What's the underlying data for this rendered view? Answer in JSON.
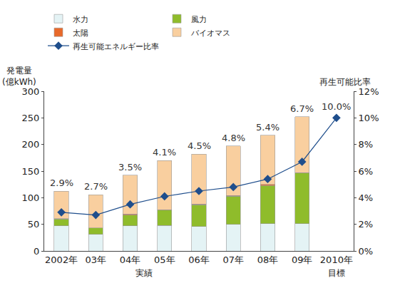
{
  "chart_data": {
    "type": "bar",
    "stacked": true,
    "data_labels": true,
    "grid": false,
    "legend": "top",
    "y_label": "発電量\n(億kWh)",
    "y2_label": "再生可能比率",
    "annotations": [
      "実績",
      "目標"
    ],
    "categories": [
      "2002年",
      "03年",
      "04年",
      "05年",
      "06年",
      "07年",
      "08年",
      "09年",
      "2010年"
    ],
    "series": [
      {
        "name": "水力",
        "type": "bar",
        "color": "#e4f3f5",
        "values": [
          47,
          31,
          47,
          48,
          46,
          50,
          51,
          51,
          null
        ]
      },
      {
        "name": "風力",
        "type": "bar",
        "color": "#8fbc2b",
        "values": [
          13,
          12,
          20,
          29,
          41,
          53,
          72,
          95,
          null
        ]
      },
      {
        "name": "太陽",
        "type": "bar",
        "color": "#e8692a",
        "values": [
          0.5,
          0.5,
          2,
          0.5,
          1,
          1,
          2,
          1,
          null
        ]
      },
      {
        "name": "バイオマス",
        "type": "bar",
        "color": "#f9cf9f",
        "values": [
          52,
          62,
          73,
          92.5,
          94,
          93,
          92,
          105,
          null
        ]
      },
      {
        "name": "再生可能エネルギー比率",
        "type": "line",
        "axis": "y2",
        "marker": "diamond",
        "color": "#1f4e8c",
        "values": [
          2.9,
          2.7,
          3.5,
          4.1,
          4.5,
          4.8,
          5.4,
          6.7,
          10.0
        ],
        "value_labels": [
          "2.9%",
          "2.7%",
          "3.5%",
          "4.1%",
          "4.5%",
          "4.8%",
          "5.4%",
          "6.7%",
          "10.0%"
        ]
      }
    ],
    "ylim": [
      0,
      300
    ],
    "yticks": [
      0,
      50,
      100,
      150,
      200,
      250,
      300
    ],
    "y2lim": [
      0,
      12
    ],
    "y2ticks": [
      {
        "value": 0,
        "label": "0%"
      },
      {
        "value": 2,
        "label": "2%"
      },
      {
        "value": 4,
        "label": "4%"
      },
      {
        "value": 6,
        "label": "6%"
      },
      {
        "value": 8,
        "label": "8%"
      },
      {
        "value": 10,
        "label": "10%"
      },
      {
        "value": 12,
        "label": "12%"
      }
    ]
  }
}
